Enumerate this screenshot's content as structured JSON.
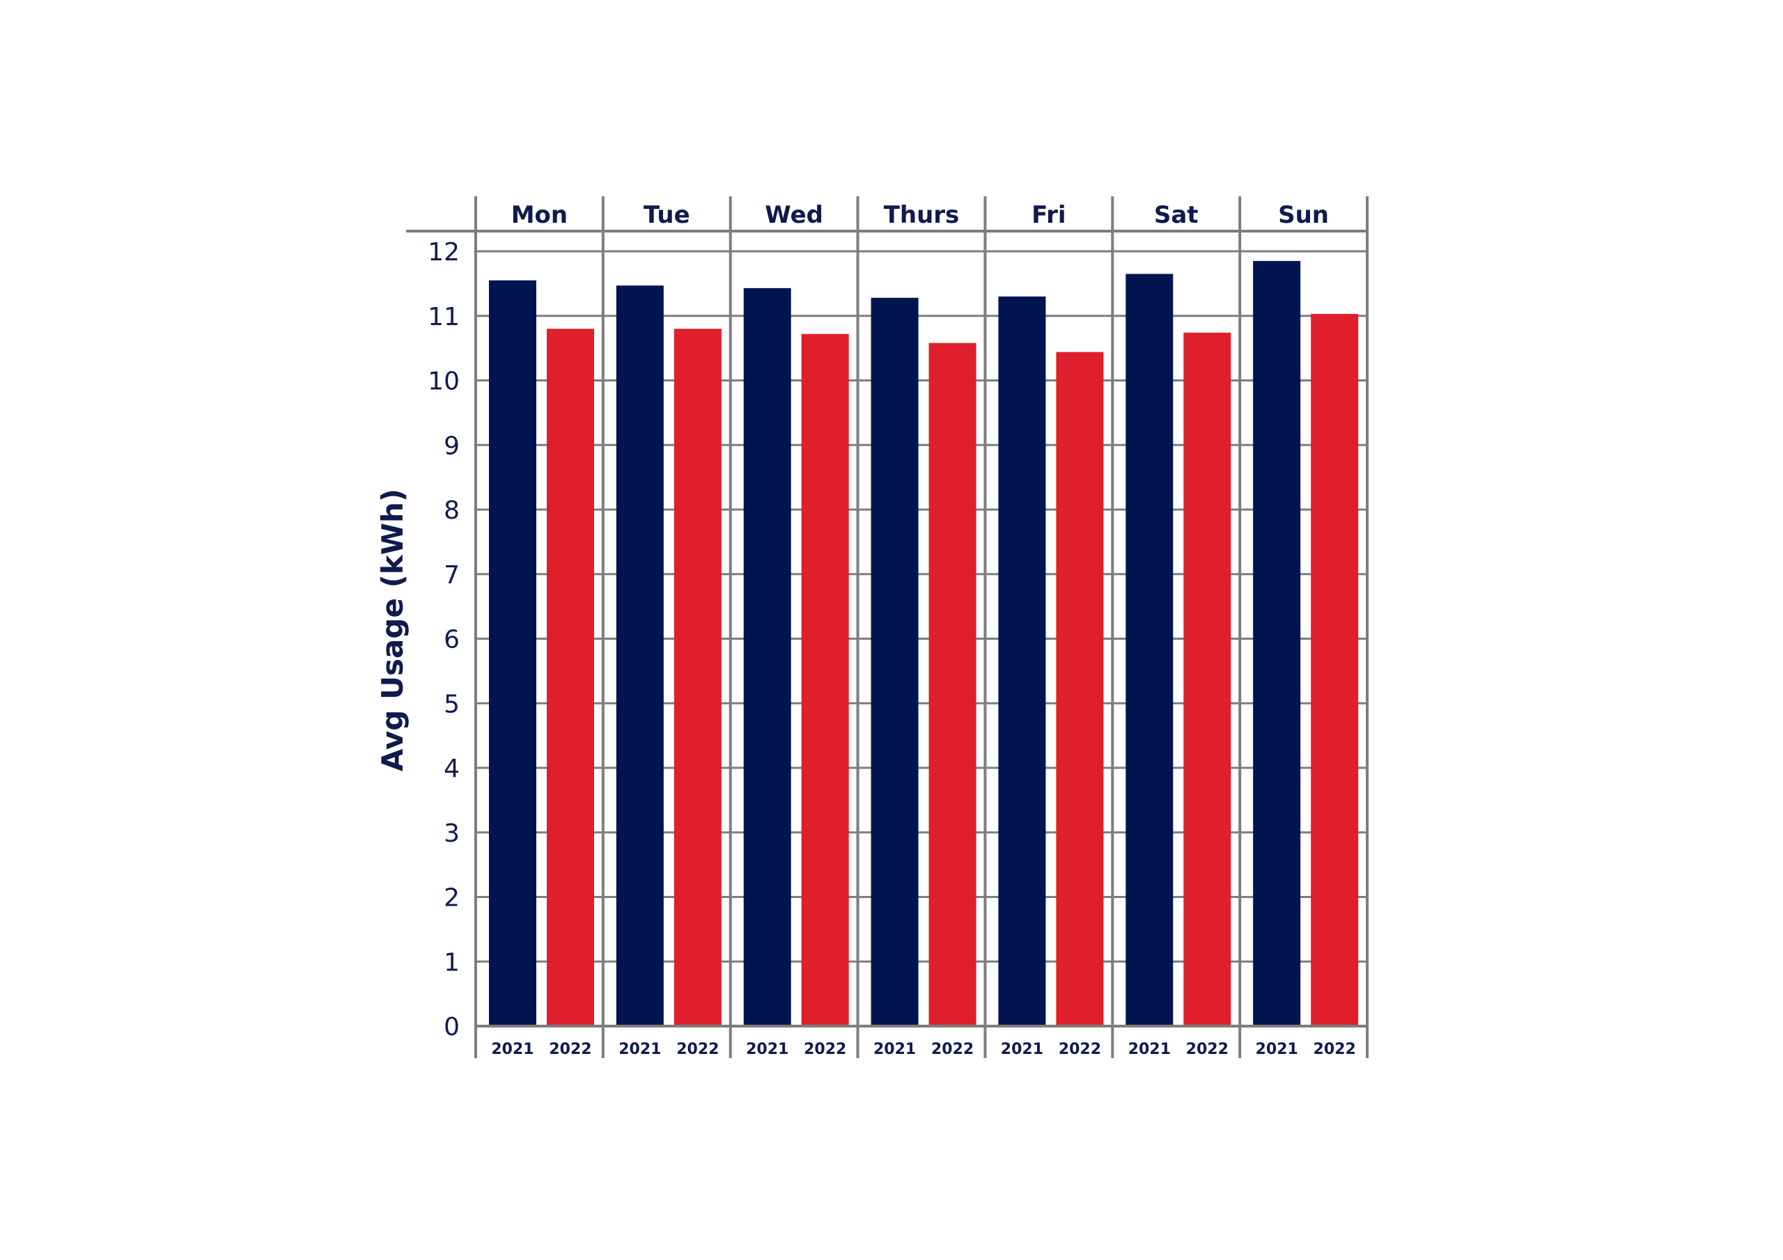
{
  "chart_data": {
    "type": "bar",
    "title": "",
    "xlabel": "",
    "ylabel": "Avg Usage (kWh)",
    "ylim": [
      0,
      12
    ],
    "yticks": [
      "0",
      "1",
      "2",
      "3",
      "4",
      "5",
      "6",
      "7",
      "8",
      "9",
      "10",
      "11",
      "12"
    ],
    "grid": true,
    "legend": "none",
    "categories": [
      "Mon",
      "Tue",
      "Wed",
      "Thurs",
      "Fri",
      "Sat",
      "Sun"
    ],
    "series": [
      {
        "name": "2021",
        "color": "#001550",
        "values": [
          11.55,
          11.47,
          11.43,
          11.28,
          11.3,
          11.65,
          11.85
        ]
      },
      {
        "name": "2022",
        "color": "#df1f2b",
        "values": [
          10.8,
          10.8,
          10.72,
          10.58,
          10.44,
          10.74,
          11.03
        ]
      }
    ]
  }
}
